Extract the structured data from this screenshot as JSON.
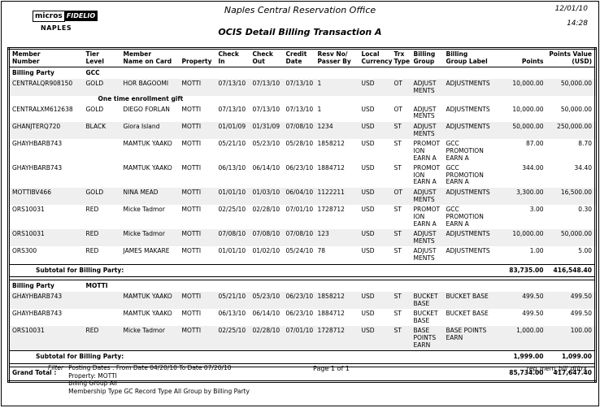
{
  "header": {
    "logo_micros": "micros",
    "logo_fidelio": "FIDELIO",
    "logo_property": "NAPLES",
    "office_title": "Naples Central Reservation Office",
    "report_title": "OCIS Detail Billing Transaction A",
    "date": "12/01/10",
    "time": "14:28"
  },
  "columns": [
    {
      "key": "member_number",
      "label": "Member\nNumber"
    },
    {
      "key": "tier_level",
      "label": "Tier\nLevel"
    },
    {
      "key": "member_name",
      "label": "Member\nName on Card"
    },
    {
      "key": "property",
      "label": "Property"
    },
    {
      "key": "check_in",
      "label": "Check In"
    },
    {
      "key": "check_out",
      "label": "Check Out"
    },
    {
      "key": "credit_date",
      "label": "Credit\nDate"
    },
    {
      "key": "resv_no",
      "label": "Resv No/\nPasser By"
    },
    {
      "key": "local_currency",
      "label": "Local\nCurrency"
    },
    {
      "key": "trx_type",
      "label": "Trx\nType"
    },
    {
      "key": "billing_group",
      "label": "Billing\nGroup"
    },
    {
      "key": "billing_group_label",
      "label": "Billing\nGroup Label"
    },
    {
      "key": "points",
      "label": "Points"
    },
    {
      "key": "points_value",
      "label": "Points Value\n(USD)"
    }
  ],
  "sections": [
    {
      "billing_party_label": "Billing Party",
      "billing_party": "GCC",
      "rows": [
        {
          "member_number": "CENTRALQR908150",
          "tier_level": "GOLD",
          "member_name": "HOR BAGOOMI",
          "property": "MOTTI",
          "check_in": "07/13/10",
          "check_out": "07/13/10",
          "credit_date": "07/13/10",
          "resv_no": "1",
          "local_currency": "USD",
          "trx_type": "OT",
          "billing_group": "ADJUST\nMENTS",
          "billing_group_label": "ADJUSTMENTS",
          "points": "10,000.00",
          "points_value": "50,000.00",
          "note": "One time enrollment gift"
        },
        {
          "member_number": "CENTRALXM612638",
          "tier_level": "GOLD",
          "member_name": "DIEGO FORLAN",
          "property": "MOTTI",
          "check_in": "07/13/10",
          "check_out": "07/13/10",
          "credit_date": "07/13/10",
          "resv_no": "1",
          "local_currency": "USD",
          "trx_type": "OT",
          "billing_group": "ADJUST\nMENTS",
          "billing_group_label": "ADJUSTMENTS",
          "points": "10,000.00",
          "points_value": "50,000.00"
        },
        {
          "member_number": "GHANJTERQ720",
          "tier_level": "BLACK",
          "member_name": "Giora Island",
          "property": "MOTTI",
          "check_in": "01/01/09",
          "check_out": "01/31/09",
          "credit_date": "07/08/10",
          "resv_no": "1234",
          "local_currency": "USD",
          "trx_type": "ST",
          "billing_group": "ADJUST\nMENTS",
          "billing_group_label": "ADJUSTMENTS",
          "points": "50,000.00",
          "points_value": "250,000.00"
        },
        {
          "member_number": "GHAYHBARB743",
          "tier_level": "",
          "member_name": "MAMTUK YAAKO",
          "property": "MOTTI",
          "check_in": "05/21/10",
          "check_out": "05/23/10",
          "credit_date": "05/28/10",
          "resv_no": "1858212",
          "local_currency": "USD",
          "trx_type": "ST",
          "billing_group": "PROMOT\nION\nEARN A",
          "billing_group_label": "GCC PROMOTION EARN A",
          "points": "87.00",
          "points_value": "8.70"
        },
        {
          "member_number": "GHAYHBARB743",
          "tier_level": "",
          "member_name": "MAMTUK YAAKO",
          "property": "MOTTI",
          "check_in": "06/13/10",
          "check_out": "06/14/10",
          "credit_date": "06/23/10",
          "resv_no": "1884712",
          "local_currency": "USD",
          "trx_type": "ST",
          "billing_group": "PROMOT\nION\nEARN A",
          "billing_group_label": "GCC PROMOTION EARN A",
          "points": "344.00",
          "points_value": "34.40"
        },
        {
          "member_number": "MOTTIBV466",
          "tier_level": "GOLD",
          "member_name": "NINA MEAD",
          "property": "MOTTI",
          "check_in": "01/01/10",
          "check_out": "01/03/10",
          "credit_date": "06/04/10",
          "resv_no": "1122211",
          "local_currency": "USD",
          "trx_type": "OT",
          "billing_group": "ADJUST\nMENTS",
          "billing_group_label": "ADJUSTMENTS",
          "points": "3,300.00",
          "points_value": "16,500.00"
        },
        {
          "member_number": "ORS10031",
          "tier_level": "RED",
          "member_name": "Micke Tadmor",
          "property": "MOTTI",
          "check_in": "02/25/10",
          "check_out": "02/28/10",
          "credit_date": "07/01/10",
          "resv_no": "1728712",
          "local_currency": "USD",
          "trx_type": "ST",
          "billing_group": "PROMOT\nION\nEARN A",
          "billing_group_label": "GCC PROMOTION EARN A",
          "points": "3.00",
          "points_value": "0.30"
        },
        {
          "member_number": "ORS10031",
          "tier_level": "RED",
          "member_name": "Micke Tadmor",
          "property": "MOTTI",
          "check_in": "07/08/10",
          "check_out": "07/08/10",
          "credit_date": "07/08/10",
          "resv_no": "123",
          "local_currency": "USD",
          "trx_type": "ST",
          "billing_group": "ADJUST\nMENTS",
          "billing_group_label": "ADJUSTMENTS",
          "points": "10,000.00",
          "points_value": "50,000.00"
        },
        {
          "member_number": "ORS300",
          "tier_level": "RED",
          "member_name": "JAMES MAKARE",
          "property": "MOTTI",
          "check_in": "01/01/10",
          "check_out": "01/02/10",
          "credit_date": "05/24/10",
          "resv_no": "78",
          "local_currency": "USD",
          "trx_type": "ST",
          "billing_group": "ADJUST\nMENTS",
          "billing_group_label": "ADJUSTMENTS",
          "points": "1.00",
          "points_value": "5.00"
        }
      ],
      "subtotal": {
        "label": "Subtotal for Billing Party:",
        "points": "83,735.00",
        "points_value": "416,548.40"
      }
    },
    {
      "billing_party_label": "Billing Party",
      "billing_party": "MOTTI",
      "rows": [
        {
          "member_number": "GHAYHBARB743",
          "tier_level": "",
          "member_name": "MAMTUK YAAKO",
          "property": "MOTTI",
          "check_in": "05/21/10",
          "check_out": "05/23/10",
          "credit_date": "06/23/10",
          "resv_no": "1858212",
          "local_currency": "USD",
          "trx_type": "ST",
          "billing_group": "BUCKET\nBASE",
          "billing_group_label": "BUCKET BASE",
          "points": "499.50",
          "points_value": "499.50"
        },
        {
          "member_number": "GHAYHBARB743",
          "tier_level": "",
          "member_name": "MAMTUK YAAKO",
          "property": "MOTTI",
          "check_in": "06/13/10",
          "check_out": "06/14/10",
          "credit_date": "06/23/10",
          "resv_no": "1884712",
          "local_currency": "USD",
          "trx_type": "ST",
          "billing_group": "BUCKET\nBASE",
          "billing_group_label": "BUCKET BASE",
          "points": "499.50",
          "points_value": "499.50"
        },
        {
          "member_number": "ORS10031",
          "tier_level": "RED",
          "member_name": "Micke Tadmor",
          "property": "MOTTI",
          "check_in": "02/25/10",
          "check_out": "02/28/10",
          "credit_date": "07/01/10",
          "resv_no": "1728712",
          "local_currency": "USD",
          "trx_type": "ST",
          "billing_group": "BASE\nPOINTS\nEARN",
          "billing_group_label": "BASE POINTS EARN",
          "points": "1,000.00",
          "points_value": "100.00"
        }
      ],
      "subtotal": {
        "label": "Subtotal for Billing Party:",
        "points": "1,999.00",
        "points_value": "1,099.00"
      }
    }
  ],
  "grand_total": {
    "label": "Grand Total :",
    "points": "85,734.00",
    "points_value": "417,647.40"
  },
  "footer": {
    "filter_label": "Filter",
    "filter_lines": [
      "Posting Dates :   From Date 04/20/10   To Date 07/20/10",
      "Property:   MOTTI",
      "Billing Group All",
      "Membership Type GC   Record Type All   Group by Billing Party"
    ],
    "page_label": "Page 1 of 1",
    "report_id": "rep_mem_bill_dtltrx"
  }
}
